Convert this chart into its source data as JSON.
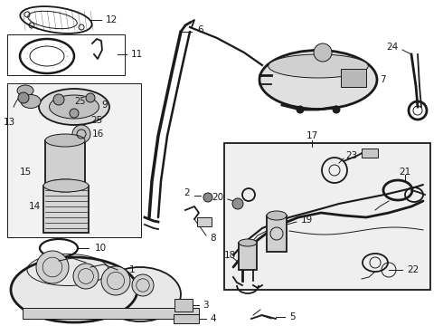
{
  "bg_color": "#ffffff",
  "line_color": "#1a1a1a",
  "label_color": "#000000",
  "box_fill": "#f0f0f0",
  "detail_fill": "#eeeeee",
  "figsize": [
    4.9,
    3.6
  ],
  "dpi": 100,
  "lw_main": 1.3,
  "lw_thin": 0.7,
  "lw_thick": 2.0,
  "label_fontsize": 7.5
}
